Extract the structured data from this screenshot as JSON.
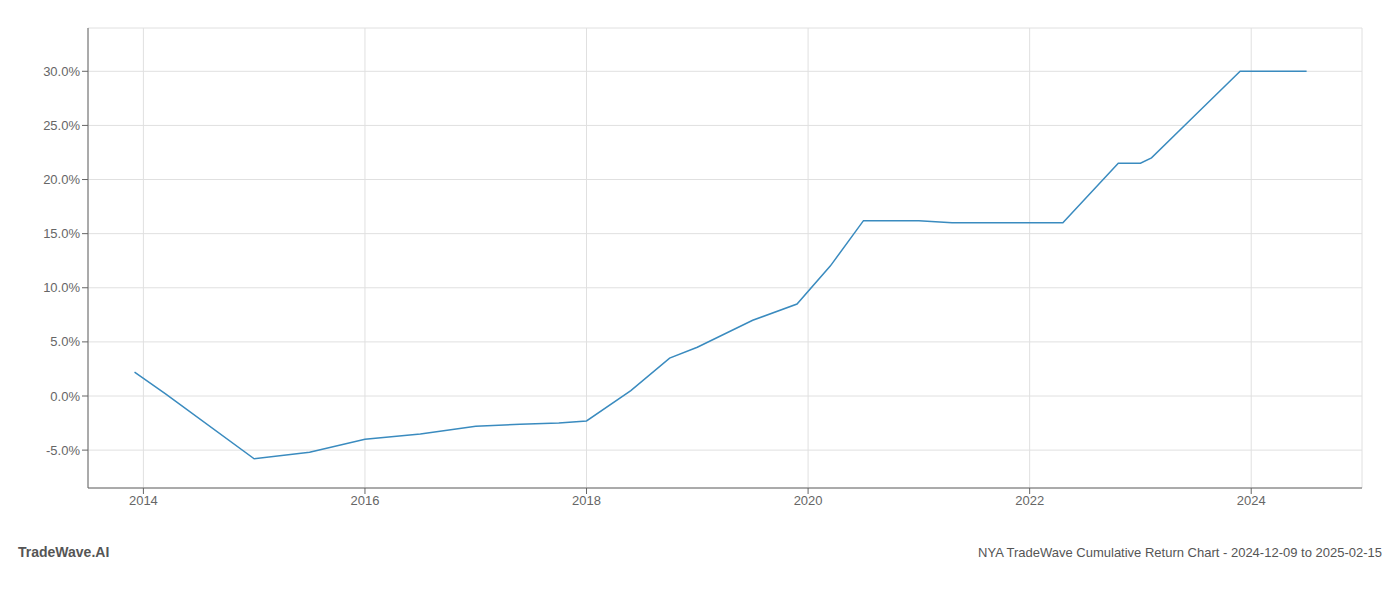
{
  "chart_data": {
    "type": "line",
    "title": "NYA TradeWave Cumulative Return Chart - 2024-12-09 to 2025-02-15",
    "annotations": [
      "TradeWave.AI"
    ],
    "x": [
      2013.92,
      2014.2,
      2015.0,
      2015.5,
      2016.0,
      2016.5,
      2017.0,
      2017.4,
      2017.75,
      2018.0,
      2018.4,
      2018.75,
      2019.0,
      2019.5,
      2019.9,
      2020.2,
      2020.5,
      2020.9,
      2021.0,
      2021.3,
      2021.7,
      2022.0,
      2022.3,
      2022.8,
      2023.0,
      2023.1,
      2023.5,
      2023.9,
      2024.1,
      2024.5
    ],
    "values": [
      2.2,
      0.2,
      -5.8,
      -5.2,
      -4.0,
      -3.5,
      -2.8,
      -2.6,
      -2.5,
      -2.3,
      0.5,
      3.5,
      4.5,
      7.0,
      8.5,
      12.0,
      16.2,
      16.2,
      16.2,
      16.0,
      16.0,
      16.0,
      16.0,
      21.5,
      21.5,
      22.0,
      26.0,
      30.0,
      30.0,
      30.0
    ],
    "color": "#3a8bbf",
    "xlim": [
      2013.5,
      2025.0
    ],
    "ylim": [
      -8.5,
      34.0
    ],
    "xticks": [
      2014,
      2016,
      2018,
      2020,
      2022,
      2024
    ],
    "yticks": [
      {
        "value": -5.0,
        "label": "-5.0%"
      },
      {
        "value": 0.0,
        "label": "0.0%"
      },
      {
        "value": 5.0,
        "label": "5.0%"
      },
      {
        "value": 10.0,
        "label": "10.0%"
      },
      {
        "value": 15.0,
        "label": "15.0%"
      },
      {
        "value": 20.0,
        "label": "20.0%"
      },
      {
        "value": 25.0,
        "label": "25.0%"
      },
      {
        "value": 30.0,
        "label": "30.0%"
      }
    ],
    "grid": true
  }
}
